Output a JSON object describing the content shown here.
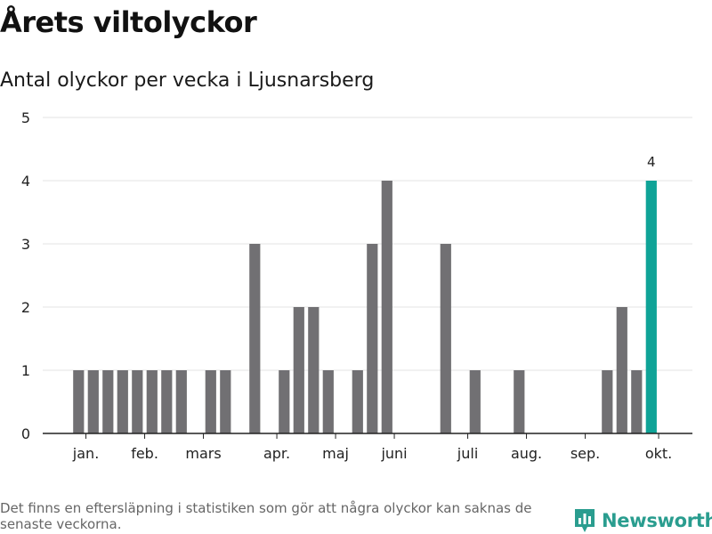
{
  "header": {
    "title": "Årets viltolyckor",
    "subtitle": "Antal olyckor per vecka i Ljusnarsberg"
  },
  "footer": {
    "note": "Det finns en eftersläpning i statistiken som gör att några olyckor kan saknas de senaste veckorna.",
    "brand_name": "Newsworthy",
    "brand_icon": "bar-chart-bubble-icon"
  },
  "colors": {
    "bar": "#717073",
    "highlight": "#0fa397",
    "grid": "#e3e3e3",
    "axis": "#222222",
    "brand": "#2a9d8f"
  },
  "chart_data": {
    "type": "bar",
    "title": "Antal olyckor per vecka i Ljusnarsberg",
    "xlabel": "",
    "ylabel": "",
    "ylim": [
      0,
      5
    ],
    "yticks": [
      0,
      1,
      2,
      3,
      4,
      5
    ],
    "grid": true,
    "legend": "none",
    "x_label_ticks": [
      {
        "label": "jan.",
        "week": 1.5
      },
      {
        "label": "feb.",
        "week": 5.5
      },
      {
        "label": "mars",
        "week": 9.5
      },
      {
        "label": "apr.",
        "week": 14.5
      },
      {
        "label": "maj",
        "week": 18.5
      },
      {
        "label": "juni",
        "week": 22.5
      },
      {
        "label": "juli",
        "week": 27.5
      },
      {
        "label": "aug.",
        "week": 31.5
      },
      {
        "label": "sep.",
        "week": 35.5
      },
      {
        "label": "okt.",
        "week": 40.5
      }
    ],
    "weeks": [
      1,
      2,
      3,
      4,
      5,
      6,
      7,
      8,
      9,
      10,
      11,
      12,
      13,
      14,
      15,
      16,
      17,
      18,
      19,
      20,
      21,
      22,
      23,
      24,
      25,
      26,
      27,
      28,
      29,
      30,
      31,
      32,
      33,
      34,
      35,
      36,
      37,
      38,
      39,
      40
    ],
    "values": [
      1,
      1,
      1,
      1,
      1,
      1,
      1,
      1,
      0,
      1,
      1,
      0,
      3,
      0,
      1,
      2,
      2,
      1,
      0,
      1,
      3,
      4,
      0,
      0,
      0,
      3,
      0,
      1,
      0,
      0,
      1,
      0,
      0,
      0,
      0,
      0,
      1,
      2,
      1,
      4
    ],
    "highlight_week": 40,
    "highlight_label": "4"
  }
}
